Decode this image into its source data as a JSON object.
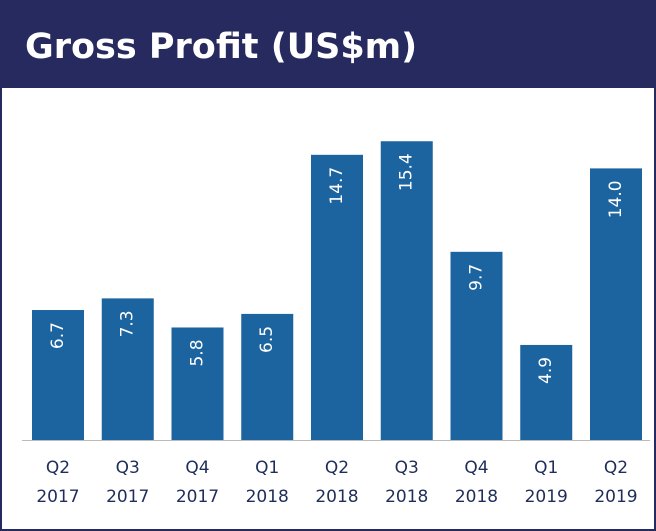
{
  "chart_data": {
    "type": "bar",
    "title": "Gross Profit (US$m)",
    "categories": [
      [
        "Q2",
        "2017"
      ],
      [
        "Q3",
        "2017"
      ],
      [
        "Q4",
        "2017"
      ],
      [
        "Q1",
        "2018"
      ],
      [
        "Q2",
        "2018"
      ],
      [
        "Q3",
        "2018"
      ],
      [
        "Q4",
        "2018"
      ],
      [
        "Q1",
        "2019"
      ],
      [
        "Q2",
        "2019"
      ]
    ],
    "values": [
      6.7,
      7.3,
      5.8,
      6.5,
      14.7,
      15.4,
      9.7,
      4.9,
      14.0
    ],
    "value_labels": [
      "6.7",
      "7.3",
      "5.8",
      "6.5",
      "14.7",
      "15.4",
      "9.7",
      "4.9",
      "14.0"
    ],
    "color": "#1c64a0"
  }
}
